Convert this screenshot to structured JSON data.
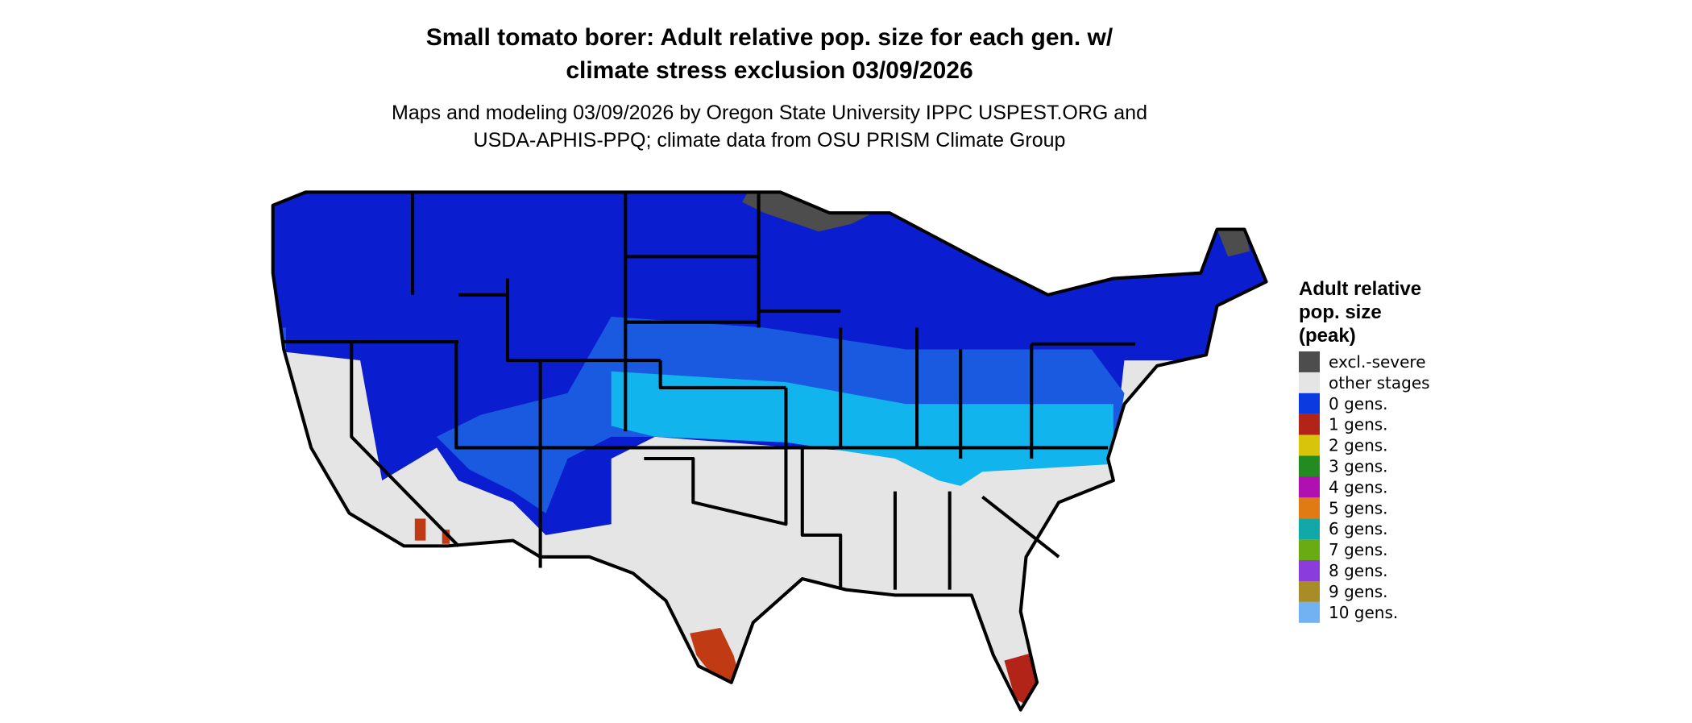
{
  "header": {
    "title_lines": [
      "Small tomato borer: Adult relative pop. size for each gen. w/",
      "climate stress exclusion 03/09/2026"
    ],
    "subtitle_lines": [
      "Maps and modeling 03/09/2026 by Oregon State University IPPC USPEST.ORG and",
      "USDA-APHIS-PPQ; climate data from OSU PRISM Climate Group"
    ]
  },
  "legend": {
    "title_lines": [
      "Adult relative",
      "pop. size",
      "(peak)"
    ],
    "items": [
      {
        "label": "excl.-severe",
        "color": "#4d4d4d"
      },
      {
        "label": "other stages",
        "color": "#e5e5e5"
      },
      {
        "label": "0 gens.",
        "color": "#0a3ae0"
      },
      {
        "label": "1 gens.",
        "color": "#b22318"
      },
      {
        "label": "2 gens.",
        "color": "#d8c40a"
      },
      {
        "label": "3 gens.",
        "color": "#228b22"
      },
      {
        "label": "4 gens.",
        "color": "#b010b0"
      },
      {
        "label": "5 gens.",
        "color": "#e07a12"
      },
      {
        "label": "6 gens.",
        "color": "#13a8a8"
      },
      {
        "label": "7 gens.",
        "color": "#6aaa12"
      },
      {
        "label": "8 gens.",
        "color": "#8a3ddc"
      },
      {
        "label": "9 gens.",
        "color": "#a88c28"
      },
      {
        "label": "10 gens.",
        "color": "#72b2f2"
      }
    ]
  }
}
